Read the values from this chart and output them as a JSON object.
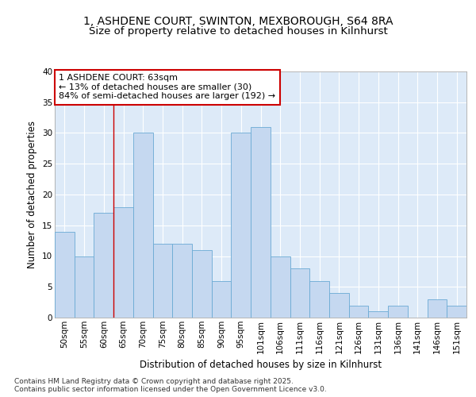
{
  "title1": "1, ASHDENE COURT, SWINTON, MEXBOROUGH, S64 8RA",
  "title2": "Size of property relative to detached houses in Kilnhurst",
  "xlabel": "Distribution of detached houses by size in Kilnhurst",
  "ylabel": "Number of detached properties",
  "categories": [
    "50sqm",
    "55sqm",
    "60sqm",
    "65sqm",
    "70sqm",
    "75sqm",
    "80sqm",
    "85sqm",
    "90sqm",
    "95sqm",
    "101sqm",
    "106sqm",
    "111sqm",
    "116sqm",
    "121sqm",
    "126sqm",
    "131sqm",
    "136sqm",
    "141sqm",
    "146sqm",
    "151sqm"
  ],
  "values": [
    14,
    10,
    17,
    18,
    30,
    12,
    12,
    11,
    6,
    30,
    31,
    10,
    8,
    6,
    4,
    2,
    1,
    2,
    0,
    3,
    2
  ],
  "bar_color": "#c5d8f0",
  "bar_edge_color": "#6aaad4",
  "bg_color": "#ddeaf8",
  "grid_color": "#ffffff",
  "vline_color": "#cc0000",
  "vline_pos": 2.5,
  "annotation_text": "1 ASHDENE COURT: 63sqm\n← 13% of detached houses are smaller (30)\n84% of semi-detached houses are larger (192) →",
  "annotation_box_color": "#ffffff",
  "annotation_box_edge_color": "#cc0000",
  "ylim": [
    0,
    40
  ],
  "yticks": [
    0,
    5,
    10,
    15,
    20,
    25,
    30,
    35,
    40
  ],
  "footer": "Contains HM Land Registry data © Crown copyright and database right 2025.\nContains public sector information licensed under the Open Government Licence v3.0.",
  "title1_fontsize": 10,
  "title2_fontsize": 9.5,
  "axis_label_fontsize": 8.5,
  "tick_fontsize": 7.5,
  "annotation_fontsize": 8,
  "footer_fontsize": 6.5
}
